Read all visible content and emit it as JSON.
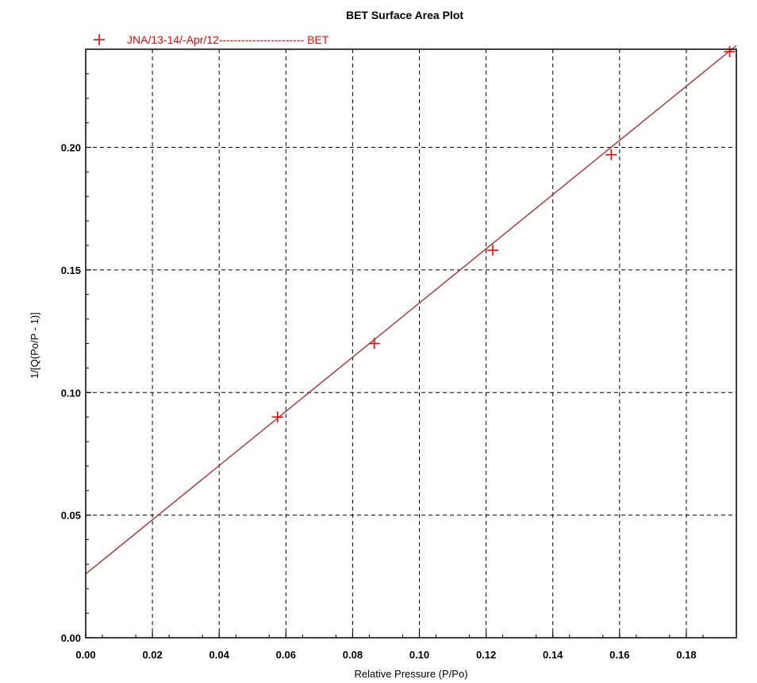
{
  "chart_data": {
    "type": "scatter",
    "title": "BET Surface Area Plot",
    "xlabel": "Relative Pressure (P/Po)",
    "ylabel": "1/[Q(Po/P - 1)]",
    "xlim": [
      0.0,
      0.195
    ],
    "ylim": [
      0.0,
      0.24
    ],
    "x_ticks": [
      "0.00",
      "0.02",
      "0.04",
      "0.06",
      "0.08",
      "0.10",
      "0.12",
      "0.14",
      "0.16",
      "0.18"
    ],
    "y_ticks": [
      "0.00",
      "0.05",
      "0.10",
      "0.15",
      "0.20"
    ],
    "grid": true,
    "legend_position": "top-left",
    "series": [
      {
        "name": "JNA/13-14/-Apr/12----------------------- BET",
        "marker": "plus",
        "color": "#ff0000",
        "points": [
          {
            "x": 0.0575,
            "y": 0.09
          },
          {
            "x": 0.0865,
            "y": 0.12
          },
          {
            "x": 0.122,
            "y": 0.158
          },
          {
            "x": 0.1575,
            "y": 0.197
          },
          {
            "x": 0.193,
            "y": 0.239
          }
        ]
      }
    ],
    "fit_line": {
      "color": "#b03030",
      "from": {
        "x": 0.0,
        "y": 0.026
      },
      "to": {
        "x": 0.195,
        "y": 0.2415
      }
    }
  }
}
